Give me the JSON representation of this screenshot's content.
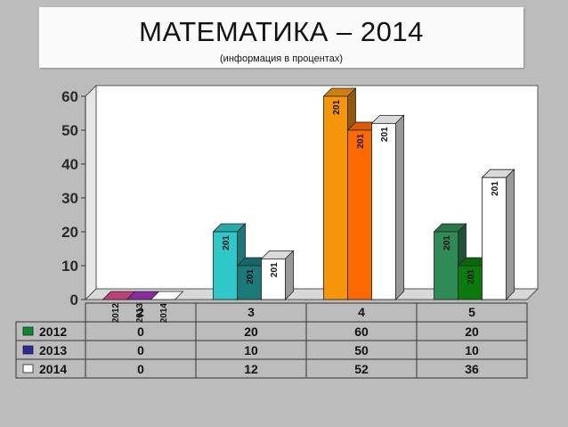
{
  "title": "МАТЕМАТИКА – 2014",
  "subtitle": "(информация в процентах)",
  "chart_data": {
    "type": "bar",
    "categories": [
      "2",
      "3",
      "4",
      "5"
    ],
    "series": [
      {
        "name": "2012",
        "values": [
          0,
          20,
          60,
          20
        ],
        "colors": [
          "#c0407a",
          "#2ec8c8",
          "#f5960a",
          "#2e8b57"
        ]
      },
      {
        "name": "2013",
        "values": [
          0,
          10,
          50,
          10
        ],
        "colors": [
          "#8a2ba0",
          "#1a7a7a",
          "#ff6a00",
          "#0a7a0a"
        ]
      },
      {
        "name": "2014",
        "values": [
          0,
          12,
          52,
          36
        ],
        "colors": [
          "#ffffff",
          "#ffffff",
          "#ffffff",
          "#ffffff"
        ]
      }
    ],
    "legend_colors": [
      "#0a8a2a",
      "#2a2aa0",
      "#ffffff"
    ],
    "data_labels": [
      [
        "2012",
        "2013",
        "2014"
      ],
      [
        "201",
        "201",
        "201"
      ],
      [
        "201",
        "201",
        "201"
      ],
      [
        "201",
        "201",
        "201"
      ]
    ],
    "yticks": [
      0,
      10,
      20,
      30,
      40,
      50,
      60
    ],
    "ylim": [
      0,
      60
    ],
    "legend": "data-table",
    "grid": false
  }
}
